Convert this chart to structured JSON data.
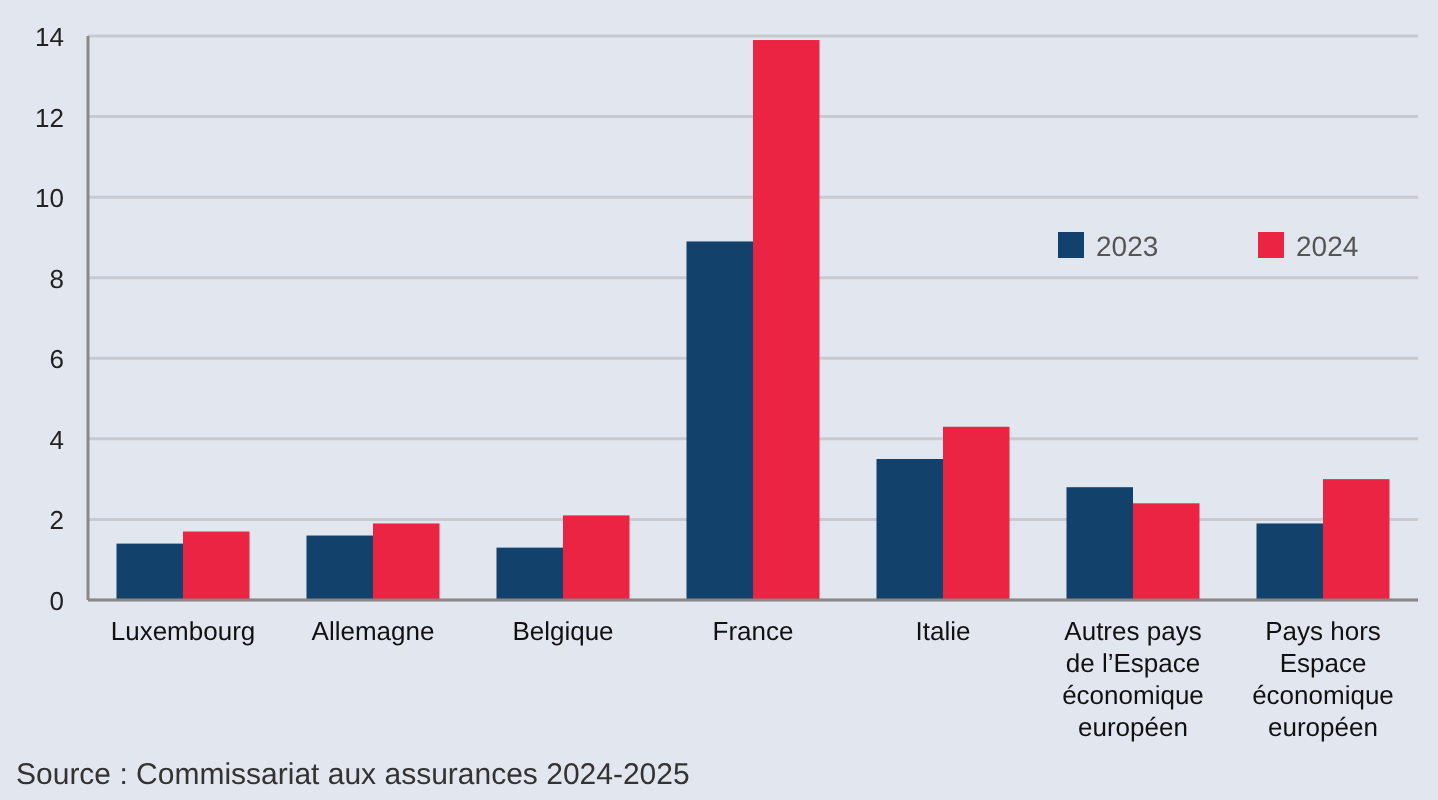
{
  "chart_data": {
    "type": "bar",
    "categories": [
      "Luxembourg",
      "Allemagne",
      "Belgique",
      "France",
      "Italie",
      "Autres pays de l’Espace économique européen",
      "Pays hors Espace économique européen"
    ],
    "series": [
      {
        "name": "2023",
        "color": "#12416b",
        "values": [
          1.4,
          1.6,
          1.3,
          8.9,
          3.5,
          2.8,
          1.9
        ]
      },
      {
        "name": "2024",
        "color": "#eb2444",
        "values": [
          1.7,
          1.9,
          2.1,
          13.9,
          4.3,
          2.4,
          3.0
        ]
      }
    ],
    "ylim": [
      0,
      14
    ],
    "yticks": [
      0,
      2,
      4,
      6,
      8,
      10,
      12,
      14
    ],
    "grid": "y",
    "legend": "top right",
    "annotations": [
      "Source : Commissariat aux assurances 2024-2025"
    ]
  }
}
